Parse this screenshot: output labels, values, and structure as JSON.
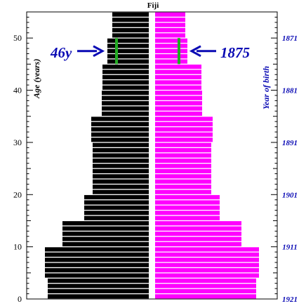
{
  "chart_data": {
    "type": "bar",
    "orientation": "horizontal",
    "layout": "population-pyramid",
    "title": "Fiji",
    "ylabel": "Age (years)",
    "ylabel_right": "Year of birth",
    "ylim": [
      0,
      55
    ],
    "y_ticks": [
      0,
      10,
      20,
      30,
      40,
      50
    ],
    "right_ticks": [
      {
        "age": 0,
        "label": "1921"
      },
      {
        "age": 10,
        "label": "1911"
      },
      {
        "age": 20,
        "label": "1901"
      },
      {
        "age": 30,
        "label": "1891"
      },
      {
        "age": 40,
        "label": "1881"
      },
      {
        "age": 50,
        "label": "1871"
      }
    ],
    "ages": [
      0,
      1,
      2,
      3,
      4,
      5,
      6,
      7,
      8,
      9,
      10,
      11,
      12,
      13,
      14,
      15,
      16,
      17,
      18,
      19,
      20,
      21,
      22,
      23,
      24,
      25,
      26,
      27,
      28,
      29,
      30,
      31,
      32,
      33,
      34,
      35,
      36,
      37,
      38,
      39,
      40,
      41,
      42,
      43,
      44,
      45,
      46,
      47,
      48,
      49,
      50,
      51,
      52,
      53,
      54
    ],
    "series": [
      {
        "color": "#000000",
        "side": "left",
        "values": [
          144,
          144,
          144,
          144,
          148,
          148,
          148,
          148,
          148,
          148,
          123,
          123,
          123,
          123,
          123,
          92,
          92,
          92,
          92,
          92,
          80,
          80,
          80,
          80,
          80,
          80,
          80,
          80,
          80,
          80,
          82,
          82,
          82,
          82,
          82,
          67,
          67,
          67,
          67,
          67,
          66,
          66,
          66,
          66,
          66,
          59,
          59,
          59,
          59,
          59,
          52,
          52,
          52,
          52,
          52
        ]
      },
      {
        "color": "#ff00ff",
        "side": "right",
        "values": [
          144,
          144,
          144,
          144,
          148,
          148,
          148,
          148,
          148,
          148,
          123,
          123,
          123,
          123,
          123,
          92,
          92,
          92,
          92,
          92,
          80,
          80,
          80,
          80,
          80,
          80,
          80,
          80,
          80,
          80,
          82,
          82,
          82,
          82,
          82,
          67,
          67,
          67,
          67,
          67,
          66,
          66,
          66,
          66,
          66,
          46,
          46,
          46,
          46,
          46,
          43,
          43,
          43,
          43,
          43
        ]
      }
    ],
    "annotations": [
      {
        "text": "46y",
        "side": "left",
        "age": 47.5,
        "arrow": "right"
      },
      {
        "text": "1875",
        "side": "right",
        "age": 47.5,
        "arrow": "left"
      }
    ],
    "markers": [
      {
        "side": "left",
        "age_from": 45,
        "age_to": 50,
        "offset": 46,
        "color": "#22aa22"
      },
      {
        "side": "right",
        "age_from": 45,
        "age_to": 50,
        "offset": 34,
        "color": "#22aa22"
      }
    ],
    "colors": {
      "axis": "#000000",
      "annotation": "#0a0ab4",
      "marker": "#22aa22",
      "bar_label": "#ffffff"
    }
  }
}
